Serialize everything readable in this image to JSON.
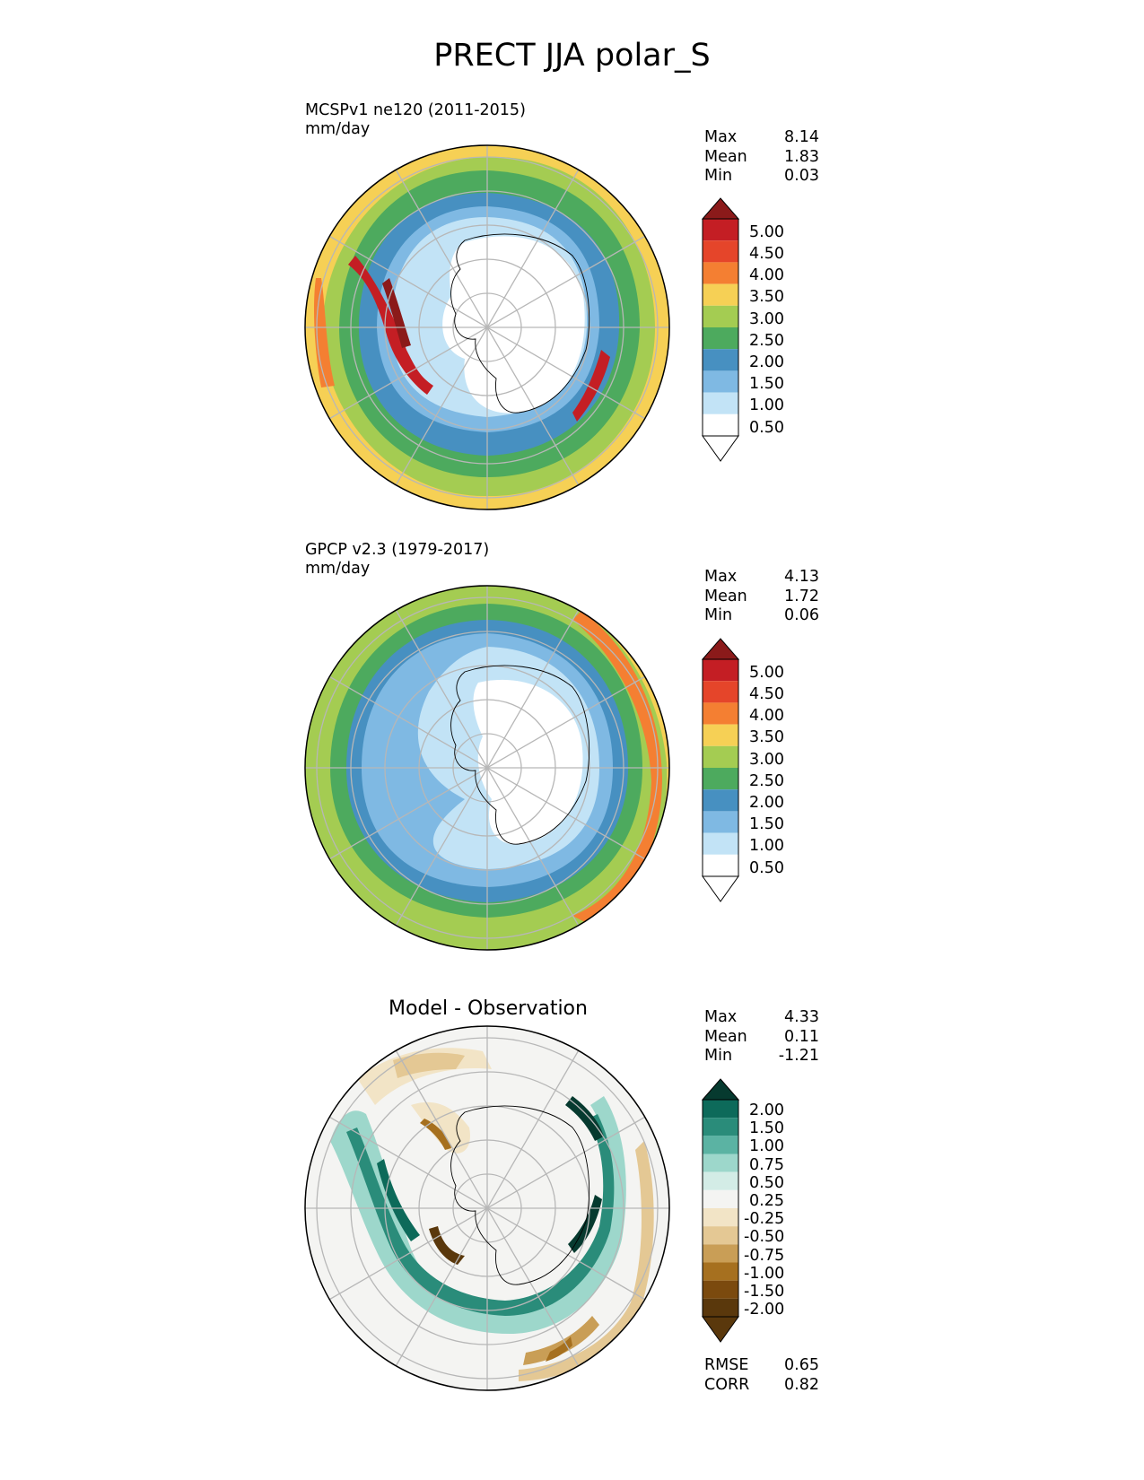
{
  "main_title": "PRECT JJA polar_S",
  "panels": [
    {
      "title_line1": "MCSPv1 ne120 (2011-2015)",
      "title_line2": "mm/day",
      "stats": [
        {
          "label": "Max",
          "value": "8.14"
        },
        {
          "label": "Mean",
          "value": "1.83"
        },
        {
          "label": "Min",
          "value": "0.03"
        }
      ]
    },
    {
      "title_line1": "GPCP v2.3 (1979-2017)",
      "title_line2": "mm/day",
      "stats": [
        {
          "label": "Max",
          "value": "4.13"
        },
        {
          "label": "Mean",
          "value": "1.72"
        },
        {
          "label": "Min",
          "value": "0.06"
        }
      ]
    },
    {
      "title": "Model - Observation",
      "stats": [
        {
          "label": "Max",
          "value": "4.33"
        },
        {
          "label": "Mean",
          "value": "0.11"
        },
        {
          "label": "Min",
          "value": "-1.21"
        }
      ],
      "metrics": [
        {
          "label": "RMSE",
          "value": "0.65"
        },
        {
          "label": "CORR",
          "value": "0.82"
        }
      ]
    }
  ],
  "precip_colorbar": {
    "labels": [
      "5.00",
      "4.50",
      "4.00",
      "3.50",
      "3.00",
      "2.50",
      "2.00",
      "1.50",
      "1.00",
      "0.50"
    ],
    "colors": [
      "#8b1a1a",
      "#c41e24",
      "#e5452a",
      "#f47f32",
      "#f6d055",
      "#a4cc52",
      "#4daa5e",
      "#4790c1",
      "#7fb9e3",
      "#c2e3f6",
      "#ffffff"
    ]
  },
  "diff_colorbar": {
    "labels": [
      "2.00",
      "1.50",
      "1.00",
      "0.75",
      "0.50",
      "0.25",
      "-0.25",
      "-0.50",
      "-0.75",
      "-1.00",
      "-1.50",
      "-2.00"
    ],
    "colors": [
      "#063a2f",
      "#0d6a5a",
      "#2a8c7a",
      "#5bb3a3",
      "#9dd7cb",
      "#d3ece6",
      "#f4f4f2",
      "#f2e4c6",
      "#e4c894",
      "#c99e56",
      "#a6701f",
      "#7b4a0e",
      "#5a380c"
    ]
  }
}
